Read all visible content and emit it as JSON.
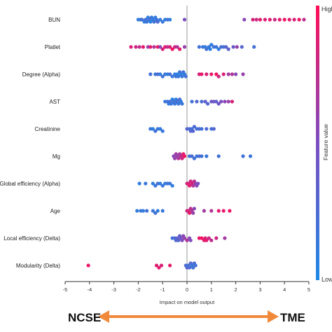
{
  "chart_data": {
    "type": "scatter",
    "subtype": "shap-beeswarm",
    "xlabel": "Impact on model output",
    "xlim": [
      -5,
      5
    ],
    "xticks": [
      -5,
      -4,
      -3,
      -2,
      -1,
      0,
      1,
      2,
      3,
      4,
      5
    ],
    "colorbar": {
      "label": "Feature value",
      "high_label": "High",
      "low_label": "Low",
      "low_color": "#1e88e5",
      "high_color": "#ff0d57"
    },
    "features": [
      {
        "name": "BUN",
        "points": [
          [
            -2.0,
            0.1
          ],
          [
            -1.9,
            0.15
          ],
          [
            -1.85,
            0.2
          ],
          [
            -1.75,
            0.1
          ],
          [
            -1.7,
            0.2
          ],
          [
            -1.65,
            0.15
          ],
          [
            -1.6,
            0.1
          ],
          [
            -1.55,
            0.2
          ],
          [
            -1.5,
            0.05
          ],
          [
            -1.45,
            0.15
          ],
          [
            -1.4,
            0.1
          ],
          [
            -1.35,
            0.2
          ],
          [
            -1.3,
            0.1
          ],
          [
            -1.25,
            0.15
          ],
          [
            -1.2,
            0.25
          ],
          [
            -1.1,
            0.1
          ],
          [
            -1.0,
            0.15
          ],
          [
            -0.9,
            0.1
          ],
          [
            -0.8,
            0.2
          ],
          [
            -0.7,
            0.1
          ],
          [
            -0.1,
            0.5
          ],
          [
            2.35,
            0.55
          ],
          [
            2.7,
            0.85
          ],
          [
            2.85,
            0.8
          ],
          [
            3.0,
            0.9
          ],
          [
            3.2,
            0.85
          ],
          [
            3.4,
            0.9
          ],
          [
            3.6,
            0.8
          ],
          [
            3.8,
            0.9
          ],
          [
            4.0,
            0.95
          ],
          [
            4.2,
            0.9
          ],
          [
            4.4,
            0.85
          ],
          [
            4.6,
            0.95
          ],
          [
            4.8,
            0.75
          ]
        ]
      },
      {
        "name": "Platlet",
        "points": [
          [
            -2.3,
            0.85
          ],
          [
            -2.1,
            0.8
          ],
          [
            -1.95,
            0.75
          ],
          [
            -1.8,
            0.9
          ],
          [
            -1.6,
            0.6
          ],
          [
            -1.5,
            0.9
          ],
          [
            -1.35,
            0.7
          ],
          [
            -1.2,
            0.95
          ],
          [
            -1.1,
            0.55
          ],
          [
            -1.0,
            0.85
          ],
          [
            -0.9,
            0.9
          ],
          [
            -0.8,
            0.75
          ],
          [
            -0.7,
            0.85
          ],
          [
            -0.6,
            0.95
          ],
          [
            -0.5,
            0.8
          ],
          [
            -0.4,
            0.7
          ],
          [
            -0.3,
            0.9
          ],
          [
            -0.1,
            0.6
          ],
          [
            0.5,
            0.2
          ],
          [
            0.65,
            0.15
          ],
          [
            0.75,
            0.1
          ],
          [
            0.8,
            0.2
          ],
          [
            0.9,
            0.15
          ],
          [
            0.95,
            0.05
          ],
          [
            1.0,
            0.1
          ],
          [
            1.1,
            0.2
          ],
          [
            1.2,
            0.15
          ],
          [
            1.3,
            0.1
          ],
          [
            1.4,
            0.25
          ],
          [
            1.5,
            0.2
          ],
          [
            1.6,
            0.3
          ],
          [
            1.7,
            0.35
          ],
          [
            1.9,
            0.4
          ],
          [
            2.05,
            0.6
          ],
          [
            2.25,
            0.3
          ],
          [
            2.75,
            0.2
          ]
        ]
      },
      {
        "name": "Degree (Alpha)",
        "points": [
          [
            -1.5,
            0.2
          ],
          [
            -1.3,
            0.15
          ],
          [
            -1.2,
            0.25
          ],
          [
            -1.1,
            0.1
          ],
          [
            -1.0,
            0.2
          ],
          [
            -0.9,
            0.15
          ],
          [
            -0.8,
            0.1
          ],
          [
            -0.7,
            0.2
          ],
          [
            -0.6,
            0.15
          ],
          [
            -0.5,
            0.1
          ],
          [
            -0.45,
            0.2
          ],
          [
            -0.4,
            0.05
          ],
          [
            -0.35,
            0.15
          ],
          [
            -0.3,
            0.2
          ],
          [
            -0.25,
            0.1
          ],
          [
            -0.2,
            0.15
          ],
          [
            -0.15,
            0.2
          ],
          [
            -0.1,
            0.1
          ],
          [
            -0.05,
            0.2
          ],
          [
            0.5,
            0.85
          ],
          [
            0.6,
            0.9
          ],
          [
            0.8,
            0.85
          ],
          [
            1.0,
            0.9
          ],
          [
            1.2,
            0.95
          ],
          [
            1.3,
            0.8
          ],
          [
            1.5,
            0.85
          ],
          [
            1.7,
            0.65
          ],
          [
            1.85,
            0.7
          ],
          [
            2.0,
            0.55
          ],
          [
            2.3,
            0.6
          ]
        ]
      },
      {
        "name": "AST",
        "points": [
          [
            -0.9,
            0.15
          ],
          [
            -0.8,
            0.2
          ],
          [
            -0.75,
            0.1
          ],
          [
            -0.7,
            0.2
          ],
          [
            -0.65,
            0.15
          ],
          [
            -0.6,
            0.05
          ],
          [
            -0.55,
            0.2
          ],
          [
            -0.5,
            0.15
          ],
          [
            -0.45,
            0.1
          ],
          [
            -0.4,
            0.2
          ],
          [
            -0.35,
            0.15
          ],
          [
            -0.3,
            0.25
          ],
          [
            -0.25,
            0.1
          ],
          [
            -0.2,
            0.15
          ],
          [
            0.2,
            0.2
          ],
          [
            0.4,
            0.3
          ],
          [
            0.6,
            0.25
          ],
          [
            0.75,
            0.35
          ],
          [
            0.85,
            0.3
          ],
          [
            1.0,
            0.4
          ],
          [
            1.1,
            0.45
          ],
          [
            1.2,
            0.35
          ],
          [
            1.3,
            0.45
          ],
          [
            1.4,
            0.5
          ],
          [
            1.55,
            0.55
          ],
          [
            1.7,
            0.6
          ],
          [
            1.85,
            0.85
          ]
        ]
      },
      {
        "name": "Creatinine",
        "points": [
          [
            -1.5,
            0.15
          ],
          [
            -1.4,
            0.1
          ],
          [
            -1.3,
            0.2
          ],
          [
            -1.2,
            0.15
          ],
          [
            -1.1,
            0.1
          ],
          [
            -1.0,
            0.15
          ],
          [
            0.0,
            0.3
          ],
          [
            0.1,
            0.25
          ],
          [
            0.15,
            0.3
          ],
          [
            0.2,
            0.2
          ],
          [
            0.25,
            0.3
          ],
          [
            0.3,
            0.25
          ],
          [
            0.4,
            0.2
          ],
          [
            0.5,
            0.25
          ],
          [
            0.6,
            0.2
          ],
          [
            0.8,
            0.25
          ],
          [
            1.0,
            0.2
          ],
          [
            1.1,
            0.3
          ]
        ]
      },
      {
        "name": "Mg",
        "points": [
          [
            -0.55,
            0.55
          ],
          [
            -0.5,
            0.6
          ],
          [
            -0.45,
            0.65
          ],
          [
            -0.4,
            0.6
          ],
          [
            -0.35,
            0.7
          ],
          [
            -0.3,
            0.65
          ],
          [
            -0.25,
            0.75
          ],
          [
            -0.2,
            0.8
          ],
          [
            -0.15,
            0.9
          ],
          [
            -0.1,
            0.95
          ],
          [
            0.1,
            0.2
          ],
          [
            0.2,
            0.25
          ],
          [
            0.3,
            0.2
          ],
          [
            0.4,
            0.15
          ],
          [
            0.5,
            0.25
          ],
          [
            0.6,
            0.2
          ],
          [
            0.8,
            0.15
          ],
          [
            1.3,
            0.2
          ],
          [
            2.3,
            0.2
          ],
          [
            2.6,
            0.15
          ]
        ]
      },
      {
        "name": "Global efficiency (Alpha)",
        "points": [
          [
            -1.95,
            0.1
          ],
          [
            -1.7,
            0.15
          ],
          [
            -1.4,
            0.1
          ],
          [
            -1.3,
            0.15
          ],
          [
            -1.2,
            0.2
          ],
          [
            -1.1,
            0.1
          ],
          [
            -1.0,
            0.15
          ],
          [
            -0.9,
            0.1
          ],
          [
            -0.8,
            0.2
          ],
          [
            -0.7,
            0.15
          ],
          [
            -0.6,
            0.1
          ],
          [
            0.0,
            0.8
          ],
          [
            0.05,
            0.85
          ],
          [
            0.1,
            0.9
          ],
          [
            0.15,
            0.8
          ],
          [
            0.2,
            0.85
          ],
          [
            0.25,
            0.7
          ],
          [
            0.3,
            0.75
          ],
          [
            0.35,
            0.6
          ],
          [
            0.4,
            0.55
          ],
          [
            0.45,
            0.5
          ]
        ]
      },
      {
        "name": "Age",
        "points": [
          [
            -2.05,
            0.1
          ],
          [
            -1.9,
            0.15
          ],
          [
            -1.8,
            0.1
          ],
          [
            -1.65,
            0.2
          ],
          [
            -1.4,
            0.15
          ],
          [
            -1.3,
            0.2
          ],
          [
            -1.2,
            0.1
          ],
          [
            -1.0,
            0.15
          ],
          [
            0.0,
            0.8
          ],
          [
            0.05,
            0.85
          ],
          [
            0.1,
            0.9
          ],
          [
            0.15,
            0.75
          ],
          [
            0.2,
            0.7
          ],
          [
            0.25,
            0.6
          ],
          [
            0.3,
            0.55
          ],
          [
            0.7,
            0.65
          ],
          [
            1.0,
            0.7
          ],
          [
            1.3,
            0.9
          ],
          [
            1.5,
            0.9
          ],
          [
            1.75,
            0.95
          ]
        ]
      },
      {
        "name": "Local efficiency (Delta)",
        "points": [
          [
            -0.6,
            0.2
          ],
          [
            -0.5,
            0.25
          ],
          [
            -0.45,
            0.3
          ],
          [
            -0.4,
            0.35
          ],
          [
            -0.35,
            0.3
          ],
          [
            -0.3,
            0.4
          ],
          [
            -0.25,
            0.45
          ],
          [
            -0.2,
            0.5
          ],
          [
            -0.15,
            0.55
          ],
          [
            -0.1,
            0.6
          ],
          [
            0.0,
            0.7
          ],
          [
            0.1,
            0.55
          ],
          [
            0.15,
            0.5
          ],
          [
            0.5,
            0.9
          ],
          [
            0.6,
            0.95
          ],
          [
            0.7,
            0.9
          ],
          [
            0.75,
            0.85
          ],
          [
            0.8,
            0.9
          ],
          [
            0.9,
            0.8
          ],
          [
            1.0,
            0.75
          ],
          [
            1.2,
            0.8
          ],
          [
            1.55,
            0.65
          ]
        ]
      },
      {
        "name": "Modularity (Delta)",
        "points": [
          [
            -4.05,
            0.92
          ],
          [
            -1.25,
            0.88
          ],
          [
            -1.15,
            0.9
          ],
          [
            -1.05,
            0.85
          ],
          [
            -0.7,
            0.9
          ],
          [
            -0.05,
            0.25
          ],
          [
            0.0,
            0.3
          ],
          [
            0.05,
            0.2
          ],
          [
            0.1,
            0.25
          ],
          [
            0.15,
            0.3
          ],
          [
            0.2,
            0.15
          ],
          [
            0.25,
            0.2
          ],
          [
            0.3,
            0.25
          ],
          [
            0.35,
            0.2
          ]
        ]
      }
    ]
  },
  "footer": {
    "left_label": "NCSE",
    "right_label": "TME"
  },
  "colors": {
    "arrow": "#f08a3a",
    "zero_line": "#999999",
    "axis": "#333333"
  }
}
